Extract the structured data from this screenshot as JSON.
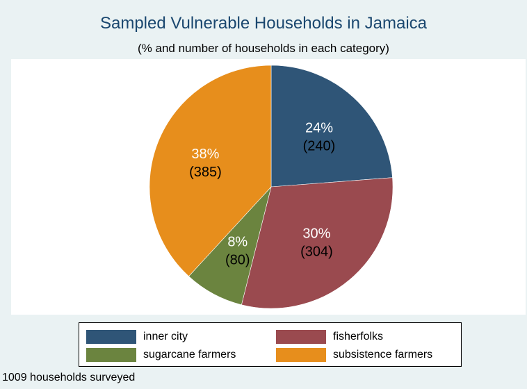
{
  "chart_data": {
    "type": "pie",
    "title": "Sampled Vulnerable Households in Jamaica",
    "subtitle": "(% and number of households in each category)",
    "note": "1009 households surveyed",
    "slices": [
      {
        "name": "inner city",
        "value": 240,
        "percent_label": "24%",
        "count_label": "(240)",
        "color": "#2f5577"
      },
      {
        "name": "fisherfolks",
        "value": 304,
        "percent_label": "30%",
        "count_label": "(304)",
        "color": "#9a4a4f"
      },
      {
        "name": "sugarcane farmers",
        "value": 80,
        "percent_label": "8%",
        "count_label": "(80)",
        "color": "#6b843f"
      },
      {
        "name": "subsistence farmers",
        "value": 385,
        "percent_label": "38%",
        "count_label": "(385)",
        "color": "#e78e1c"
      }
    ],
    "legend_position": "bottom"
  }
}
